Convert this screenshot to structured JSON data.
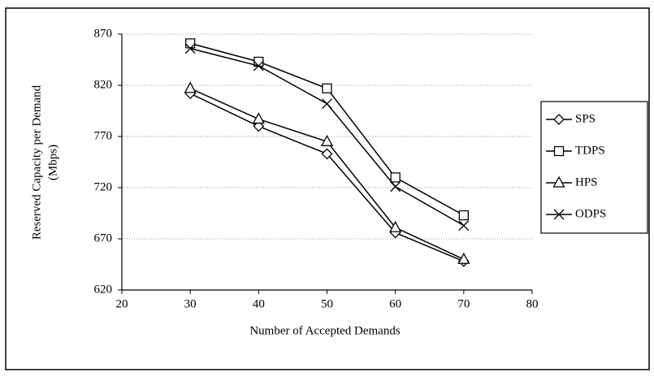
{
  "chart_data": {
    "type": "line",
    "x_label": "Number of Accepted Demands",
    "y_label": [
      "Reserved Capacity per Demand",
      "(Mbps)"
    ],
    "x": [
      30,
      40,
      50,
      60,
      70
    ],
    "series": [
      {
        "name": "SPS",
        "color": "#000000",
        "marker": "diamond",
        "values": [
          812,
          780,
          753,
          676,
          648
        ]
      },
      {
        "name": "TDPS",
        "color": "#000000",
        "marker": "square",
        "values": [
          861,
          843,
          817,
          730,
          693
        ]
      },
      {
        "name": "HPS",
        "color": "#000000",
        "marker": "triangle",
        "values": [
          817,
          787,
          765,
          681,
          650
        ]
      },
      {
        "name": "ODPS",
        "color": "#000000",
        "marker": "x",
        "values": [
          856,
          839,
          802,
          721,
          683
        ]
      }
    ],
    "xlim": [
      20,
      80
    ],
    "xticks": [
      20,
      30,
      40,
      50,
      60,
      70,
      80
    ],
    "ylim": [
      620,
      870
    ],
    "yticks": [
      620,
      670,
      720,
      770,
      820,
      870
    ],
    "grid": true,
    "legend": "right"
  }
}
